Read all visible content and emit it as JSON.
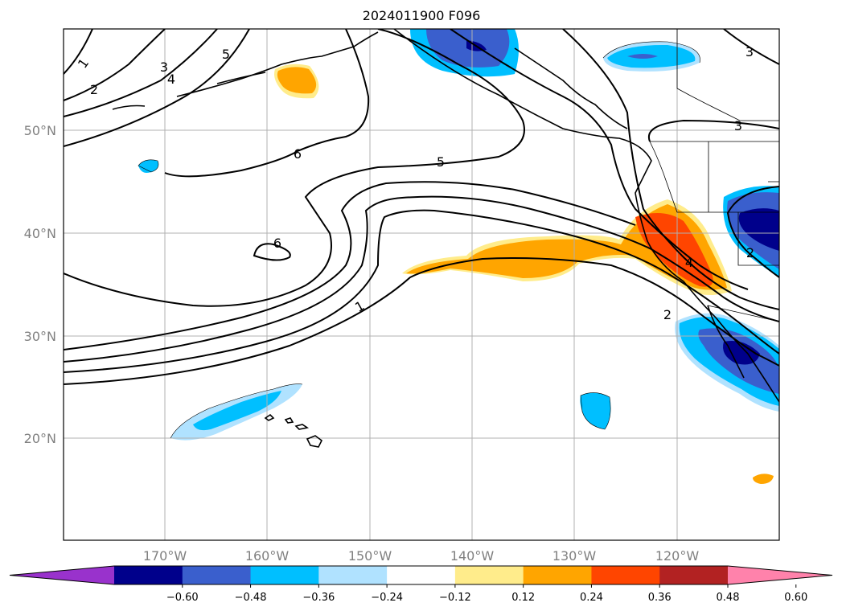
{
  "title": "2024011900 F096",
  "latitude_labels": [
    "50°N",
    "40°N",
    "30°N",
    "20°N"
  ],
  "longitude_labels": [
    "170°W",
    "160°W",
    "150°W",
    "140°W",
    "130°W",
    "120°W"
  ],
  "colorbar": {
    "ticks": [
      "−0.60",
      "−0.48",
      "−0.36",
      "−0.24",
      "−0.12",
      "0.12",
      "0.24",
      "0.36",
      "0.48",
      "0.60"
    ],
    "colors": [
      "#9932cc",
      "#00008b",
      "#3a5fcd",
      "#00bfff",
      "#b0e2ff",
      "#ffffff",
      "#ffec8b",
      "#ffa500",
      "#ff4500",
      "#b22222",
      "#ff82ab"
    ]
  },
  "contour_labels": [
    "1",
    "2",
    "3",
    "4",
    "5",
    "6",
    "6",
    "5",
    "1",
    "2",
    "4",
    "3",
    "3",
    "2"
  ]
}
